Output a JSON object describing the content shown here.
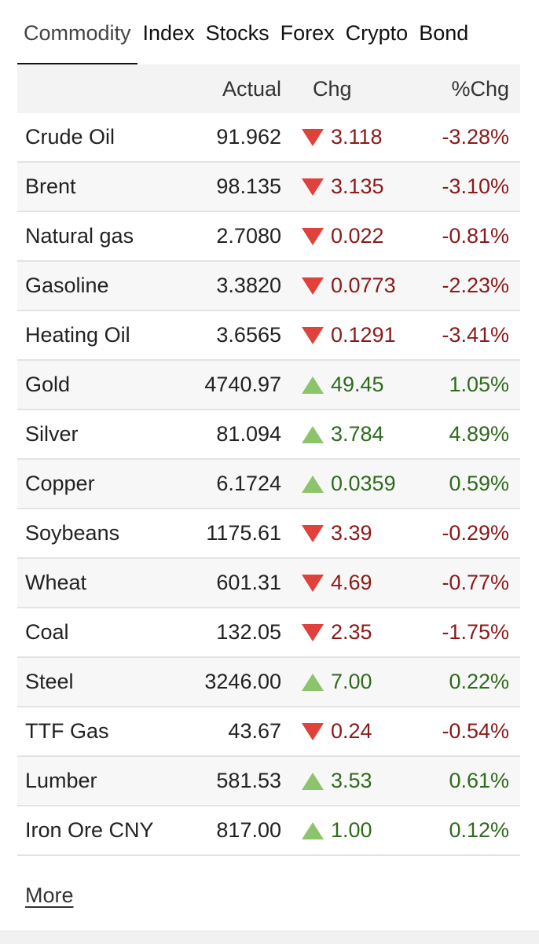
{
  "tabs": [
    "Commodity",
    "Index",
    "Stocks",
    "Forex",
    "Crypto",
    "Bond"
  ],
  "active_tab": "Commodity",
  "columns": {
    "name": "",
    "actual": "Actual",
    "chg": "Chg",
    "pct": "%Chg"
  },
  "rows": [
    {
      "name": "Crude Oil",
      "actual": "91.962",
      "chg": "3.118",
      "pct": "-3.28%",
      "dir": "down"
    },
    {
      "name": "Brent",
      "actual": "98.135",
      "chg": "3.135",
      "pct": "-3.10%",
      "dir": "down"
    },
    {
      "name": "Natural gas",
      "actual": "2.7080",
      "chg": "0.022",
      "pct": "-0.81%",
      "dir": "down"
    },
    {
      "name": "Gasoline",
      "actual": "3.3820",
      "chg": "0.0773",
      "pct": "-2.23%",
      "dir": "down"
    },
    {
      "name": "Heating Oil",
      "actual": "3.6565",
      "chg": "0.1291",
      "pct": "-3.41%",
      "dir": "down"
    },
    {
      "name": "Gold",
      "actual": "4740.97",
      "chg": "49.45",
      "pct": "1.05%",
      "dir": "up"
    },
    {
      "name": "Silver",
      "actual": "81.094",
      "chg": "3.784",
      "pct": "4.89%",
      "dir": "up"
    },
    {
      "name": "Copper",
      "actual": "6.1724",
      "chg": "0.0359",
      "pct": "0.59%",
      "dir": "up"
    },
    {
      "name": "Soybeans",
      "actual": "1175.61",
      "chg": "3.39",
      "pct": "-0.29%",
      "dir": "down"
    },
    {
      "name": "Wheat",
      "actual": "601.31",
      "chg": "4.69",
      "pct": "-0.77%",
      "dir": "down"
    },
    {
      "name": "Coal",
      "actual": "132.05",
      "chg": "2.35",
      "pct": "-1.75%",
      "dir": "down"
    },
    {
      "name": "Steel",
      "actual": "3246.00",
      "chg": "7.00",
      "pct": "0.22%",
      "dir": "up"
    },
    {
      "name": "TTF Gas",
      "actual": "43.67",
      "chg": "0.24",
      "pct": "-0.54%",
      "dir": "down"
    },
    {
      "name": "Lumber",
      "actual": "581.53",
      "chg": "3.53",
      "pct": "0.61%",
      "dir": "up"
    },
    {
      "name": "Iron Ore CNY",
      "actual": "817.00",
      "chg": "1.00",
      "pct": "0.12%",
      "dir": "up"
    }
  ],
  "more_label": "More",
  "colors": {
    "down_arrow": "#e0413a",
    "up_arrow": "#8cc46c",
    "negative_text": "#8b1a1a",
    "positive_text": "#2f6b1e"
  }
}
